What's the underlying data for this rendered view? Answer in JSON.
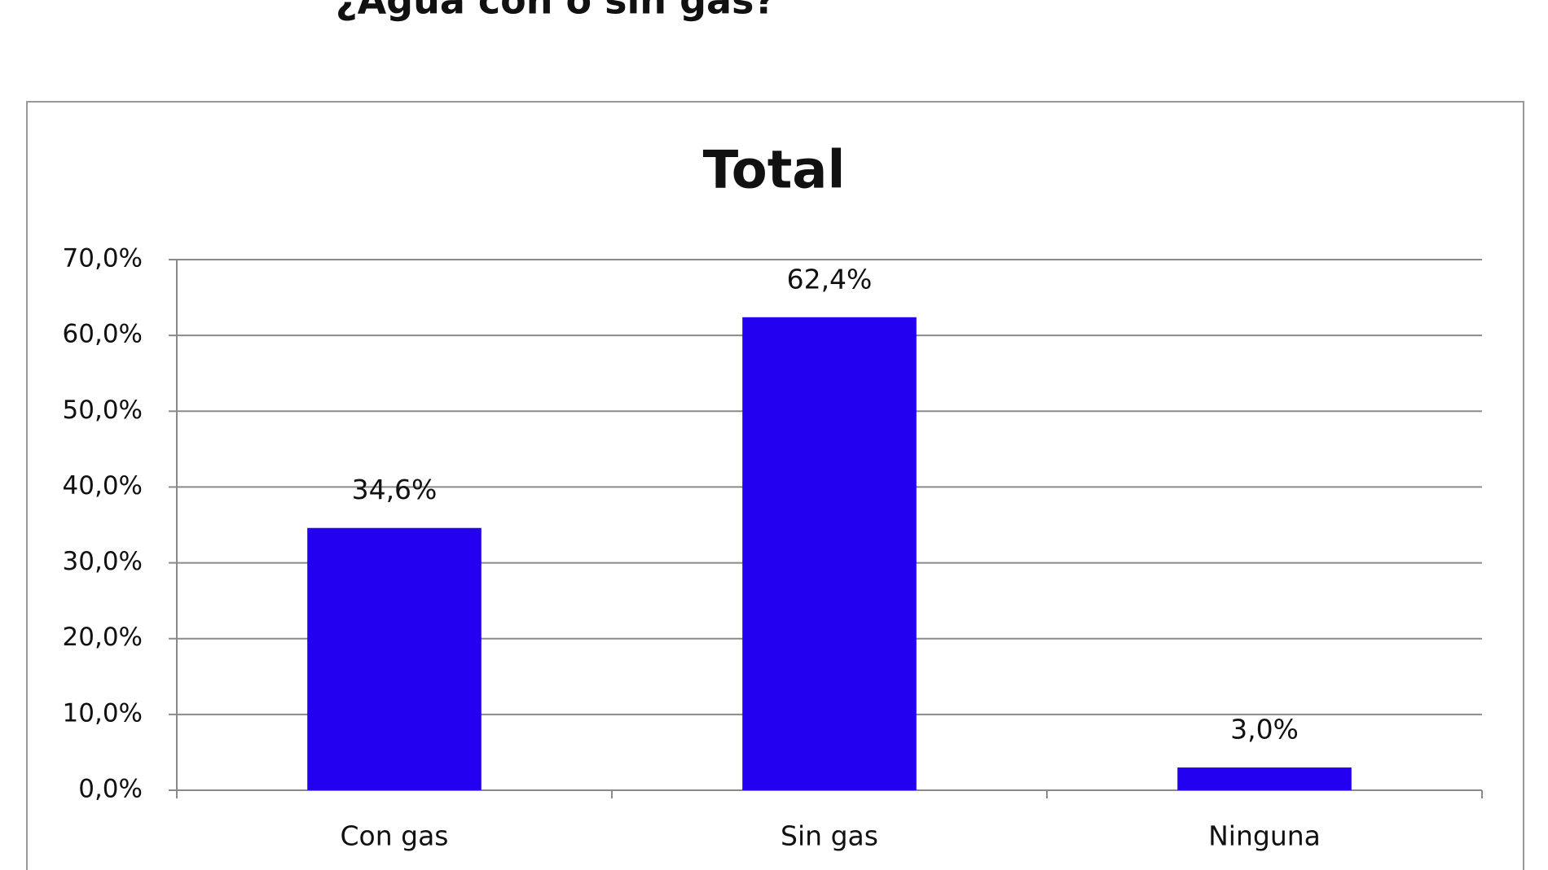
{
  "header": {
    "title": "¿Agua con o sin gas?"
  },
  "chart_data": {
    "type": "bar",
    "title": "Total",
    "categories": [
      "Con gas",
      "Sin gas",
      "Ninguna"
    ],
    "values": [
      34.6,
      62.4,
      3.0
    ],
    "value_labels": [
      "34,6%",
      "62,4%",
      "3,0%"
    ],
    "color": "#2400f0",
    "ylim": [
      0,
      70
    ],
    "yticks": [
      {
        "value": 0,
        "label": "0,0%"
      },
      {
        "value": 10,
        "label": "10,0%"
      },
      {
        "value": 20,
        "label": "20,0%"
      },
      {
        "value": 30,
        "label": "30,0%"
      },
      {
        "value": 40,
        "label": "40,0%"
      },
      {
        "value": 50,
        "label": "50,0%"
      },
      {
        "value": 60,
        "label": "60,0%"
      },
      {
        "value": 70,
        "label": "70,0%"
      }
    ],
    "grid": true
  }
}
